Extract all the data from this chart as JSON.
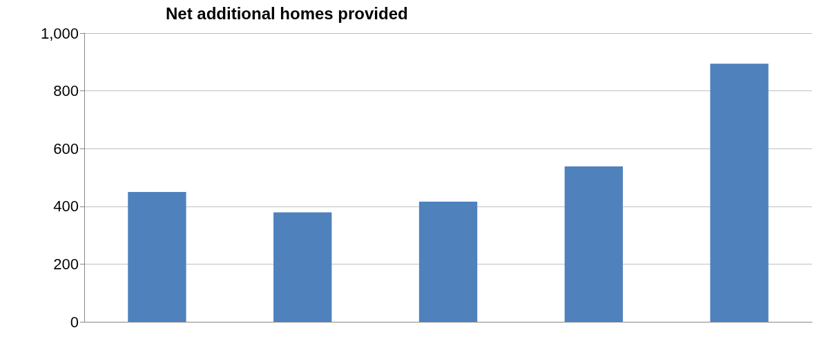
{
  "chart_data": {
    "type": "bar",
    "title": "Net additional homes provided",
    "categories": [
      null,
      null,
      null,
      null,
      null
    ],
    "values": [
      450,
      379,
      416,
      538,
      894
    ],
    "color": "#4f81bd",
    "ylim": [
      0,
      1000
    ],
    "yticks": [
      0,
      {
        "value": 200,
        "label": "200"
      },
      {
        "value": 400,
        "label": "400"
      },
      {
        "value": 600,
        "label": "600"
      },
      {
        "value": 800,
        "label": "800"
      },
      {
        "value": 1000,
        "label": "1,000"
      }
    ],
    "grid": "y"
  }
}
